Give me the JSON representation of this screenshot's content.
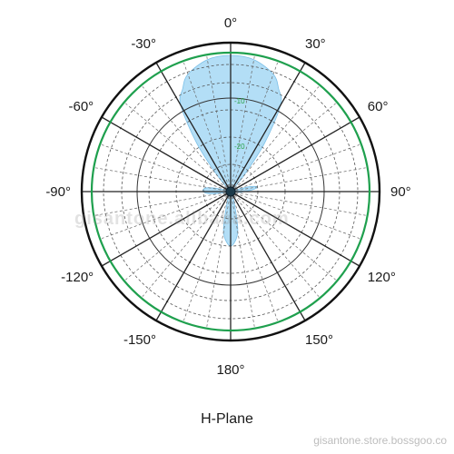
{
  "chart_data": {
    "type": "polar",
    "title": "H-Plane",
    "angle_labels": [
      "0°",
      "30°",
      "60°",
      "90°",
      "120°",
      "150°",
      "180°",
      "-150°",
      "-120°",
      "-90°",
      "-60°",
      "-30°"
    ],
    "angle_label_values": [
      0,
      30,
      60,
      90,
      120,
      150,
      180,
      -150,
      -120,
      -90,
      -60,
      -30
    ],
    "radial_labels": [
      "-10",
      "-20"
    ],
    "radial_label_values": [
      -10,
      -20
    ],
    "series": [
      {
        "theta": [
          0,
          10,
          20,
          25,
          30,
          35,
          40,
          45,
          50,
          60,
          70,
          75,
          80,
          85,
          90,
          95,
          100,
          110,
          120,
          135,
          150,
          160,
          170,
          180,
          190,
          200,
          210,
          225,
          240,
          250,
          260,
          265,
          270,
          275,
          280,
          285,
          290,
          300,
          310,
          315,
          320,
          325,
          330,
          335,
          340,
          350
        ],
        "r": [
          0.0,
          -0.5,
          -2.5,
          -5,
          -8,
          -17,
          -26,
          -30,
          -30,
          -30,
          -30,
          -26,
          -24,
          -25,
          -27,
          -28,
          -30,
          -30,
          -30,
          -30,
          -30,
          -28,
          -21,
          -18,
          -21,
          -28,
          -30,
          -30,
          -30,
          -30,
          -28,
          -25,
          -24,
          -24,
          -25,
          -28,
          -30,
          -30,
          -30,
          -30,
          -26,
          -17,
          -8,
          -5,
          -2.5,
          -0.5
        ]
      }
    ],
    "radial_range": [
      -30,
      0
    ],
    "grid": true
  },
  "colors": {
    "pattern_fill": "#a6d8f5",
    "pattern_edge": "#7cc0e8",
    "ring_green": "#1fa04e",
    "grid": "#4a4a4a"
  },
  "watermark_center": "gisantone.alibaba.com",
  "watermark_bottom": "gisantone.store.bossgoo.co"
}
